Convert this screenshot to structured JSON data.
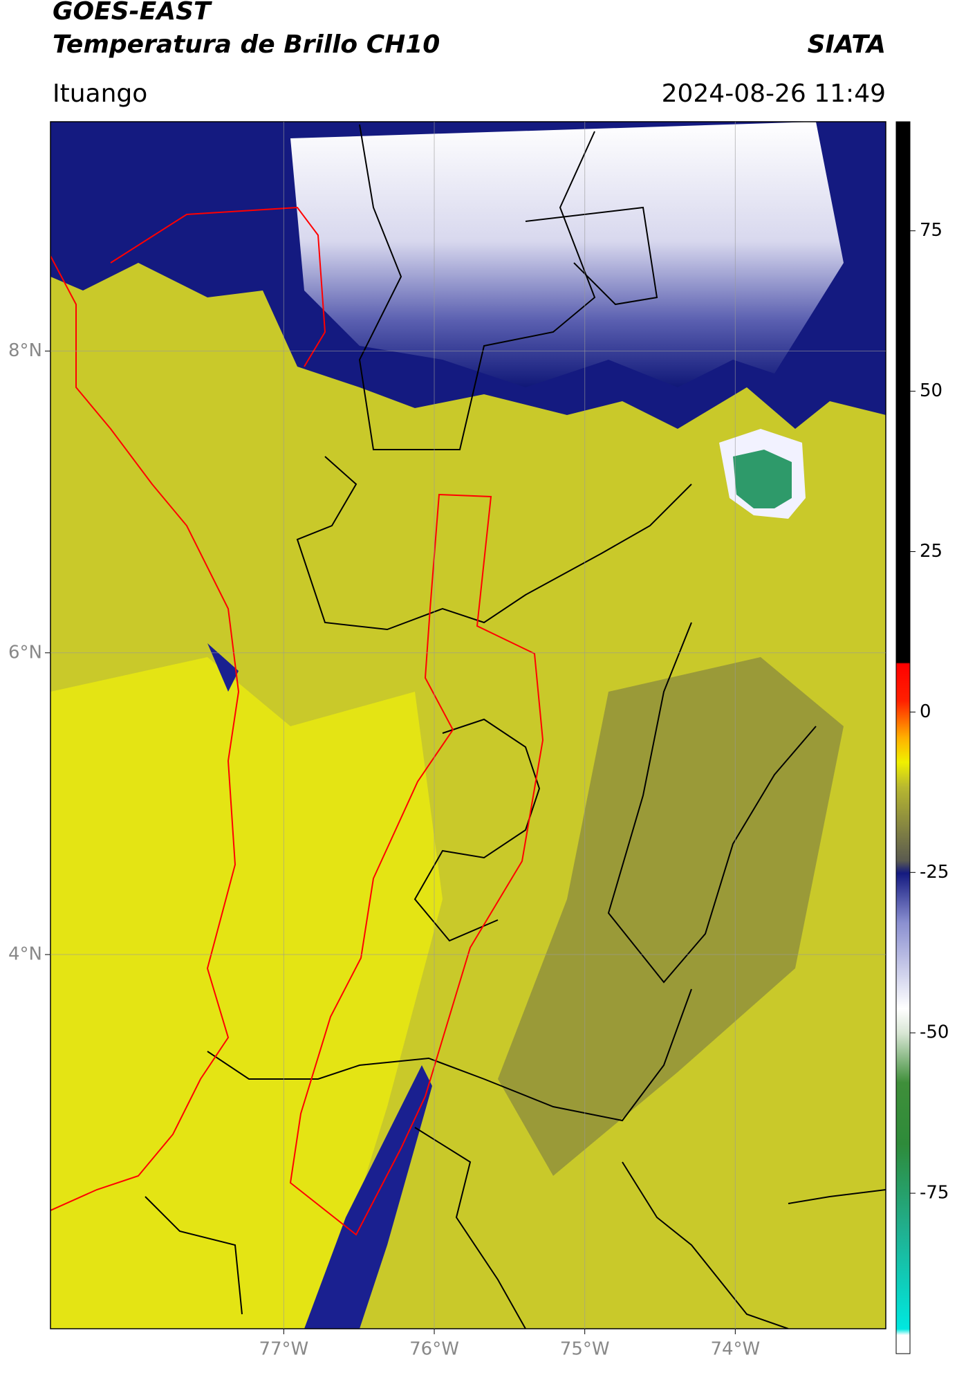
{
  "header": {
    "title": "GOES-EAST",
    "subtitle": "Temperatura de Brillo CH10",
    "source": "SIATA",
    "region": "Ituango",
    "datetime": "2024-08-26 11:49"
  },
  "map": {
    "lon_lim": [
      -78.55,
      -73.0
    ],
    "lat_lim": [
      1.52,
      9.52
    ],
    "xticks": [
      {
        "value": -77,
        "label": "77°W"
      },
      {
        "value": -76,
        "label": "76°W"
      },
      {
        "value": -75,
        "label": "75°W"
      },
      {
        "value": -74,
        "label": "74°W"
      }
    ],
    "yticks": [
      {
        "value": 8,
        "label": "8°N"
      },
      {
        "value": 6,
        "label": "6°N"
      },
      {
        "value": 4,
        "label": "4°N"
      }
    ]
  },
  "colorbar": {
    "lim": [
      -100,
      92
    ],
    "ticks": [
      75,
      50,
      25,
      0,
      -25,
      -50,
      -75
    ]
  }
}
